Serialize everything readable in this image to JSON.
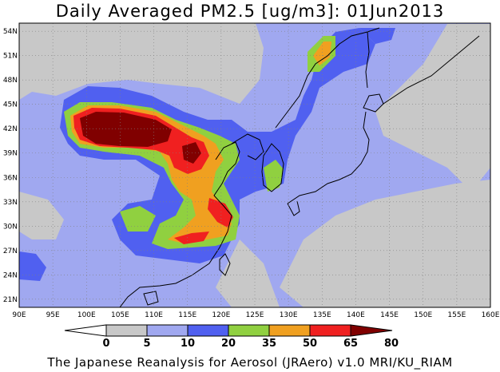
{
  "title": "Daily Averaged PM2.5 [ug/m3]: 01Jun2013",
  "credit": "The Japanese Reanalysis for Aerosol (JRAero) v1.0 MRI/KU_RIAM",
  "map": {
    "lon_range": [
      90,
      160
    ],
    "lat_range": [
      20,
      55
    ],
    "lon_ticks": [
      "90E",
      "95E",
      "100E",
      "105E",
      "110E",
      "115E",
      "120E",
      "125E",
      "130E",
      "135E",
      "140E",
      "145E",
      "150E",
      "155E",
      "160E"
    ],
    "lat_ticks": [
      "54N",
      "51N",
      "48N",
      "45N",
      "42N",
      "39N",
      "36N",
      "33N",
      "30N",
      "27N",
      "24N",
      "21N"
    ],
    "lon_tick_values": [
      90,
      95,
      100,
      105,
      110,
      115,
      120,
      125,
      130,
      135,
      140,
      145,
      150,
      155,
      160
    ],
    "lat_tick_values": [
      54,
      51,
      48,
      45,
      42,
      39,
      36,
      33,
      30,
      27,
      24,
      21
    ]
  },
  "colorbar": {
    "levels": [
      "0",
      "5",
      "10",
      "20",
      "35",
      "50",
      "65",
      "80"
    ],
    "colors": [
      "#ffffff",
      "#c8c8c8",
      "#a0a8f0",
      "#5060f0",
      "#90d040",
      "#f0a020",
      "#f02020",
      "#800000"
    ]
  }
}
